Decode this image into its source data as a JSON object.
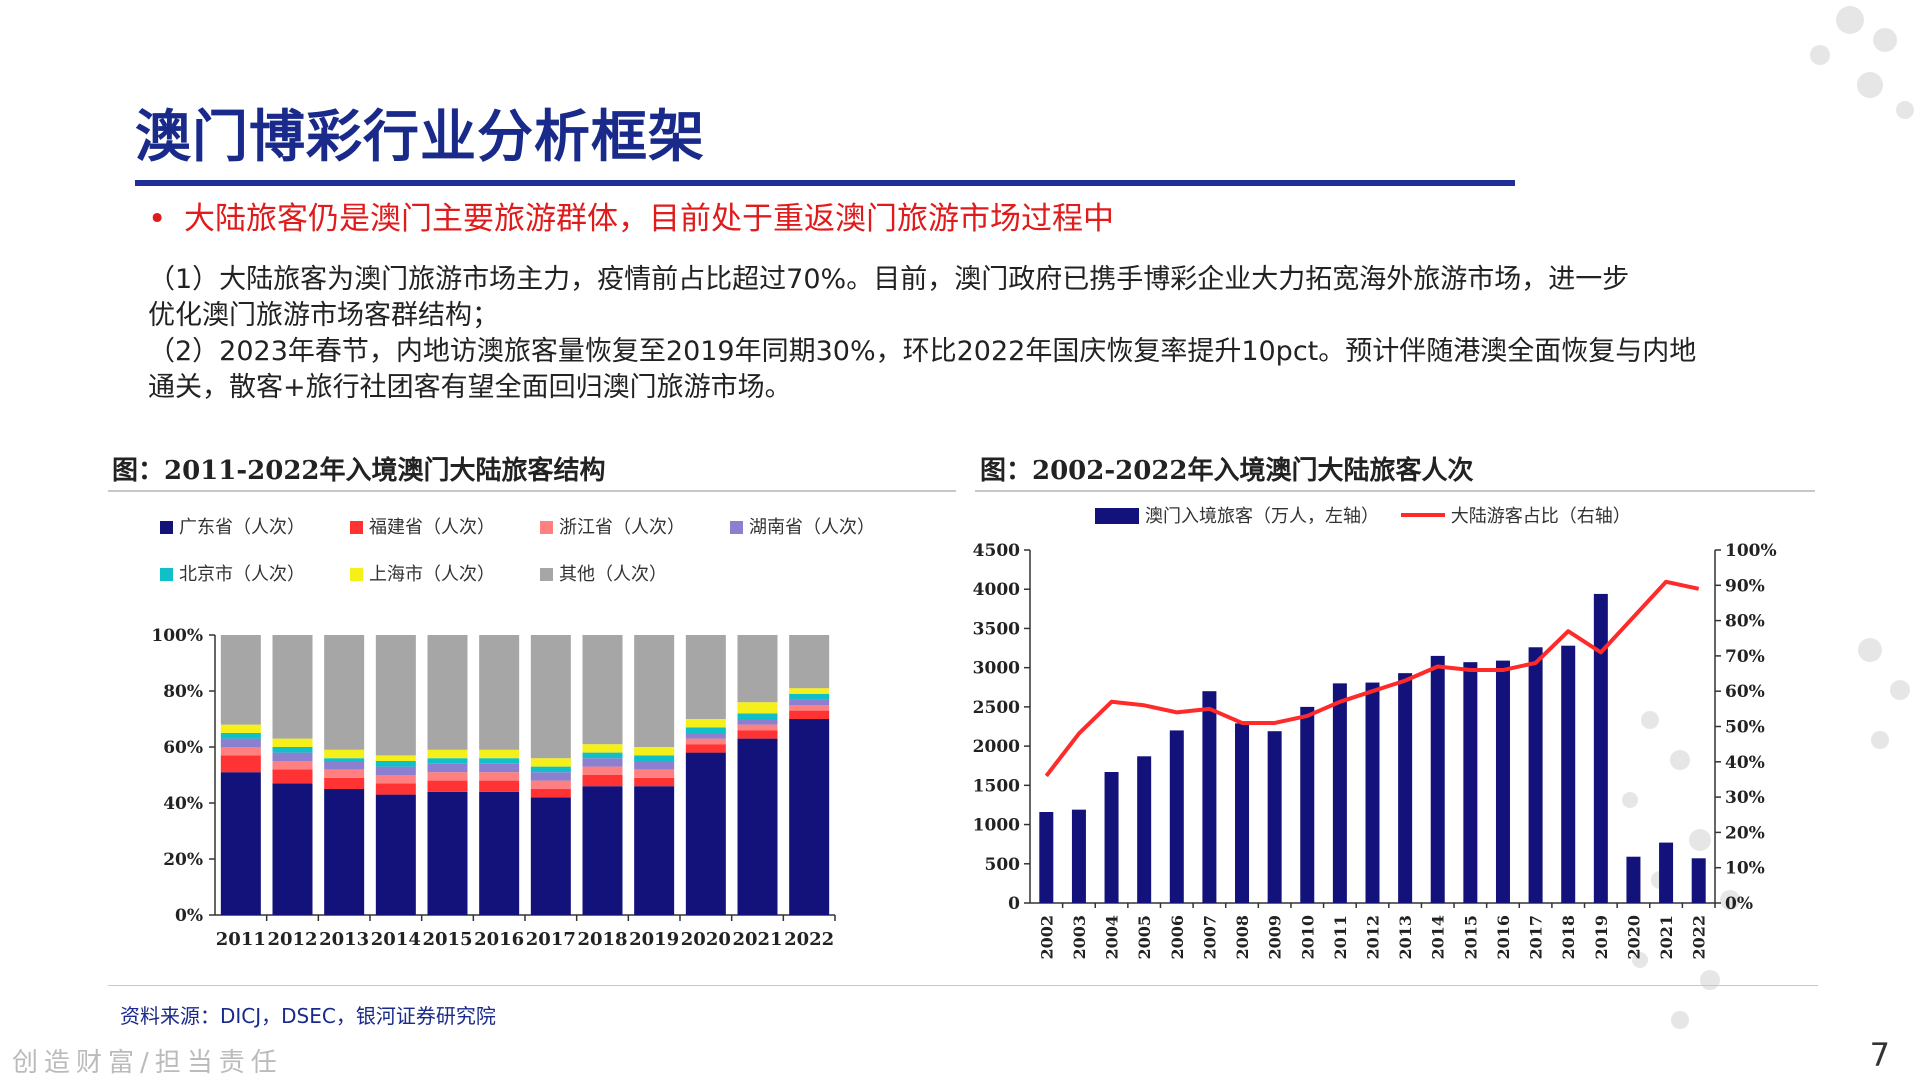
{
  "title": "澳门博彩行业分析框架",
  "bullet": "大陆旅客仍是澳门主要旅游群体，目前处于重返澳门旅游市场过程中",
  "bullet_mark": "•",
  "paragraph_lines": [
    "（1）大陆旅客为澳门旅游市场主力，疫情前占比超过70%。目前，澳门政府已携手博彩企业大力拓宽海外旅游市场，进一步",
    "优化澳门旅游市场客群结构；",
    "（2）2023年春节，内地访澳旅客量恢复至2019年同期30%，环比2022年国庆恢复率提升10pct。预计伴随港澳全面恢复与内地",
    "通关，散客+旅行社团客有望全面回归澳门旅游市场。"
  ],
  "fig1_title": "图：2011-2022年入境澳门大陆旅客结构",
  "fig2_title": "图：2002-2022年入境澳门大陆旅客人次",
  "source": "资料来源：DICJ，DSEC，银河证券研究院",
  "footer": "创造财富/担当责任",
  "page_number": "7",
  "colors": {
    "title": "#1a2a8a",
    "bullet": "#e01b1b",
    "navy": "#12127a",
    "red": "#ff3333",
    "pink": "#ff8080",
    "purple": "#8c7fcf",
    "teal": "#11bfc8",
    "yellow": "#f5ef1a",
    "gray": "#a6a6a6",
    "line": "#ff2a2a"
  },
  "chart_data": [
    {
      "type": "bar",
      "stacked": true,
      "title": "图：2011-2022年入境澳门大陆旅客结构",
      "categories": [
        "2011",
        "2012",
        "2013",
        "2014",
        "2015",
        "2016",
        "2017",
        "2018",
        "2019",
        "2020",
        "2021",
        "2022"
      ],
      "ylim": [
        0,
        100
      ],
      "y_ticks": [
        "0%",
        "20%",
        "40%",
        "60%",
        "80%",
        "100%"
      ],
      "legend_position": "top",
      "series": [
        {
          "name": "广东省（人次）",
          "color": "#12127a",
          "values": [
            51,
            47,
            45,
            43,
            44,
            44,
            42,
            46,
            46,
            58,
            63,
            70
          ]
        },
        {
          "name": "福建省（人次）",
          "color": "#ff3333",
          "values": [
            6,
            5,
            4,
            4,
            4,
            4,
            3,
            4,
            3,
            3,
            3,
            3
          ]
        },
        {
          "name": "浙江省（人次）",
          "color": "#ff8080",
          "values": [
            3,
            3,
            3,
            3,
            3,
            3,
            3,
            3,
            3,
            2,
            2,
            2
          ]
        },
        {
          "name": "湖南省（人次）",
          "color": "#8c7fcf",
          "values": [
            3,
            3,
            3,
            3,
            3,
            3,
            3,
            3,
            3,
            2,
            2,
            2
          ]
        },
        {
          "name": "北京市（人次）",
          "color": "#11bfc8",
          "values": [
            2,
            2,
            1,
            2,
            2,
            2,
            2,
            2,
            2,
            2,
            2,
            2
          ]
        },
        {
          "name": "上海市（人次）",
          "color": "#f5ef1a",
          "values": [
            3,
            3,
            3,
            2,
            3,
            3,
            3,
            3,
            3,
            3,
            4,
            2
          ]
        },
        {
          "name": "其他（人次）",
          "color": "#a6a6a6",
          "values": [
            32,
            37,
            41,
            43,
            41,
            41,
            44,
            39,
            40,
            30,
            24,
            19
          ]
        }
      ]
    },
    {
      "type": "bar",
      "title": "图：2002-2022年入境澳门大陆旅客人次",
      "categories": [
        "2002",
        "2003",
        "2004",
        "2005",
        "2006",
        "2007",
        "2008",
        "2009",
        "2010",
        "2011",
        "2012",
        "2013",
        "2014",
        "2015",
        "2016",
        "2017",
        "2018",
        "2019",
        "2020",
        "2021",
        "2022"
      ],
      "ylim_left": [
        0,
        4500
      ],
      "ylim_right": [
        0,
        100
      ],
      "left_ticks": [
        "0",
        "500",
        "1000",
        "1500",
        "2000",
        "2500",
        "3000",
        "3500",
        "4000",
        "4500"
      ],
      "right_ticks": [
        "0%",
        "10%",
        "20%",
        "30%",
        "40%",
        "50%",
        "60%",
        "70%",
        "80%",
        "90%",
        "100%"
      ],
      "legend_position": "top",
      "series": [
        {
          "name": "澳门入境旅客（万人，左轴）",
          "type": "bar",
          "axis": "left",
          "color": "#12127a",
          "values": [
            1160,
            1190,
            1670,
            1870,
            2200,
            2700,
            2290,
            2190,
            2500,
            2800,
            2810,
            2930,
            3150,
            3070,
            3090,
            3260,
            3280,
            3940,
            590,
            770,
            570
          ]
        },
        {
          "name": "大陆游客占比（右轴）",
          "type": "line",
          "axis": "right",
          "color": "#ff2a2a",
          "values": [
            36,
            48,
            57,
            56,
            54,
            55,
            51,
            51,
            53,
            57,
            60,
            63,
            67,
            66,
            66,
            68,
            77,
            71,
            81,
            91,
            89
          ]
        }
      ]
    }
  ]
}
